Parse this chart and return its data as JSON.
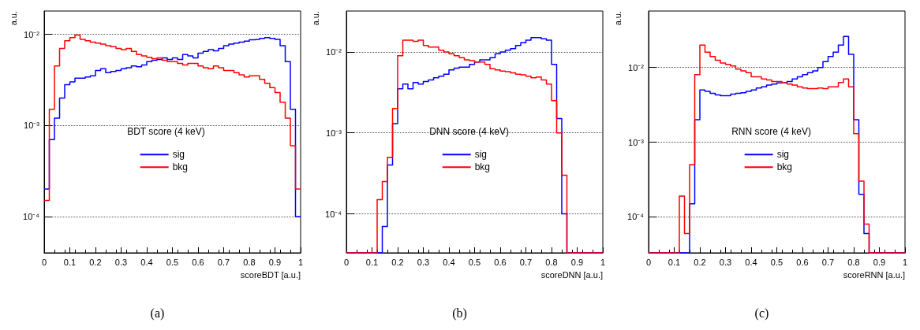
{
  "chart_data": [
    {
      "type": "histogram",
      "legend_title": "BDT score (4 keV)",
      "xlabel": "scoreBDT [a.u.]",
      "ylabel": "a.u.",
      "annotations": [
        "(a)"
      ],
      "log": "y",
      "grid": "y",
      "legend": "center",
      "line_style": "solid",
      "bins": [
        0,
        0.02,
        0.04,
        0.06,
        0.08,
        0.1,
        0.12,
        0.14,
        0.16,
        0.18,
        0.2,
        0.22,
        0.24,
        0.26,
        0.28,
        0.3,
        0.32,
        0.34,
        0.36,
        0.38,
        0.4,
        0.42,
        0.44,
        0.46,
        0.48,
        0.5,
        0.52,
        0.54,
        0.56,
        0.58,
        0.6,
        0.62,
        0.64,
        0.66,
        0.68,
        0.7,
        0.72,
        0.74,
        0.76,
        0.78,
        0.8,
        0.82,
        0.84,
        0.86,
        0.88,
        0.9,
        0.92,
        0.94,
        0.96,
        0.98,
        1
      ],
      "xlim": [
        0,
        1
      ],
      "xticks": [
        0,
        0.1,
        0.2,
        0.3,
        0.4,
        0.5,
        0.6,
        0.7,
        0.8,
        0.9,
        1
      ],
      "ylim": [
        4e-05,
        0.018
      ],
      "yticks": [
        {
          "value": 0.0001,
          "label": "10⁻⁴"
        },
        {
          "value": 0.001,
          "label": "10⁻³"
        },
        {
          "value": 0.01,
          "label": "10⁻²"
        }
      ],
      "series": [
        {
          "name": "sig",
          "color": "#0000ff",
          "values": [
            0.0002,
            0.0007,
            0.0012,
            0.002,
            0.0028,
            0.003,
            0.0033,
            0.0033,
            0.0034,
            0.0035,
            0.004,
            0.0042,
            0.0038,
            0.0039,
            0.004,
            0.0042,
            0.0043,
            0.0045,
            0.0044,
            0.0046,
            0.005,
            0.0052,
            0.0053,
            0.0055,
            0.0053,
            0.0055,
            0.0053,
            0.006,
            0.0058,
            0.0055,
            0.0062,
            0.0065,
            0.0068,
            0.0066,
            0.007,
            0.0075,
            0.0078,
            0.008,
            0.0082,
            0.0084,
            0.0087,
            0.0088,
            0.009,
            0.0092,
            0.009,
            0.0088,
            0.0075,
            0.005,
            0.0015,
            0.0001
          ]
        },
        {
          "name": "bkg",
          "color": "#ff0000",
          "values": [
            0.00015,
            0.0015,
            0.0045,
            0.007,
            0.0085,
            0.0092,
            0.0098,
            0.0088,
            0.0085,
            0.0082,
            0.008,
            0.0078,
            0.0075,
            0.0073,
            0.007,
            0.0068,
            0.007,
            0.0065,
            0.006,
            0.0058,
            0.0056,
            0.0054,
            0.0055,
            0.0052,
            0.005,
            0.005,
            0.0048,
            0.0046,
            0.0048,
            0.0048,
            0.0045,
            0.0043,
            0.0042,
            0.0045,
            0.0043,
            0.004,
            0.004,
            0.0038,
            0.0036,
            0.0034,
            0.0035,
            0.0035,
            0.0032,
            0.0029,
            0.0026,
            0.0023,
            0.0018,
            0.0012,
            0.0006,
            0.0002
          ]
        }
      ]
    },
    {
      "type": "histogram",
      "legend_title": "DNN score (4 keV)",
      "xlabel": "scoreDNN [a.u.]",
      "ylabel": "a.u.",
      "annotations": [
        "(b)"
      ],
      "log": "y",
      "grid": "y",
      "legend": "center",
      "line_style": "solid",
      "bins": [
        0,
        0.02,
        0.04,
        0.06,
        0.08,
        0.1,
        0.12,
        0.14,
        0.16,
        0.18,
        0.2,
        0.22,
        0.24,
        0.26,
        0.28,
        0.3,
        0.32,
        0.34,
        0.36,
        0.38,
        0.4,
        0.42,
        0.44,
        0.46,
        0.48,
        0.5,
        0.52,
        0.54,
        0.56,
        0.58,
        0.6,
        0.62,
        0.64,
        0.66,
        0.68,
        0.7,
        0.72,
        0.74,
        0.76,
        0.78,
        0.8,
        0.82,
        0.84,
        0.86,
        0.88,
        0.9,
        0.92,
        0.94,
        0.96,
        0.98,
        1
      ],
      "xlim": [
        0,
        1
      ],
      "xticks": [
        0,
        0.1,
        0.2,
        0.3,
        0.4,
        0.5,
        0.6,
        0.7,
        0.8,
        0.9,
        1
      ],
      "ylim": [
        3.3e-05,
        0.032
      ],
      "yticks": [
        {
          "value": 0.0001,
          "label": "10⁻⁴"
        },
        {
          "value": 0.001,
          "label": "10⁻³"
        },
        {
          "value": 0.01,
          "label": "10⁻²"
        }
      ],
      "series": [
        {
          "name": "sig",
          "color": "#0000ff",
          "values": [
            null,
            null,
            null,
            null,
            null,
            null,
            null,
            7e-05,
            0.0004,
            0.0013,
            0.0035,
            0.004,
            0.0035,
            0.0042,
            0.004,
            0.0043,
            0.0045,
            0.0048,
            0.005,
            0.0053,
            0.006,
            0.0063,
            0.0065,
            0.0065,
            0.007,
            0.0075,
            0.008,
            0.008,
            0.0085,
            0.0095,
            0.01,
            0.0105,
            0.011,
            0.012,
            0.013,
            0.014,
            0.015,
            0.015,
            0.0145,
            0.014,
            0.007,
            0.0015,
            0.0001,
            null,
            null,
            null,
            null,
            null,
            null,
            null
          ]
        },
        {
          "name": "bkg",
          "color": "#ff0000",
          "values": [
            null,
            null,
            null,
            null,
            null,
            null,
            0.00015,
            0.00025,
            0.0005,
            0.002,
            0.009,
            0.014,
            0.014,
            0.0135,
            0.014,
            0.012,
            0.0115,
            0.0115,
            0.0105,
            0.01,
            0.0095,
            0.009,
            0.0085,
            0.008,
            0.0078,
            0.0075,
            0.0075,
            0.007,
            0.0062,
            0.006,
            0.0058,
            0.0057,
            0.0055,
            0.0053,
            0.0052,
            0.005,
            0.0048,
            0.0049,
            0.0045,
            0.004,
            0.0025,
            0.001,
            0.0003,
            null,
            null,
            null,
            null,
            null,
            null,
            null
          ]
        }
      ]
    },
    {
      "type": "histogram",
      "legend_title": "RNN score (4 keV)",
      "xlabel": "scoreRNN [a.u.]",
      "ylabel": "a.u.",
      "annotations": [
        "(c)"
      ],
      "log": "y",
      "grid": "y",
      "legend": "center",
      "line_style": "solid",
      "bins": [
        0,
        0.02,
        0.04,
        0.06,
        0.08,
        0.1,
        0.12,
        0.14,
        0.16,
        0.18,
        0.2,
        0.22,
        0.24,
        0.26,
        0.28,
        0.3,
        0.32,
        0.34,
        0.36,
        0.38,
        0.4,
        0.42,
        0.44,
        0.46,
        0.48,
        0.5,
        0.52,
        0.54,
        0.56,
        0.58,
        0.6,
        0.62,
        0.64,
        0.66,
        0.68,
        0.7,
        0.72,
        0.74,
        0.76,
        0.78,
        0.8,
        0.82,
        0.84,
        0.86,
        0.88,
        0.9,
        0.92,
        0.94,
        0.96,
        0.98,
        1
      ],
      "xlim": [
        0,
        1
      ],
      "xticks": [
        0,
        0.1,
        0.2,
        0.3,
        0.4,
        0.5,
        0.6,
        0.7,
        0.8,
        0.9,
        1
      ],
      "ylim": [
        3.3e-05,
        0.057
      ],
      "yticks": [
        {
          "value": 0.0001,
          "label": "10⁻⁴"
        },
        {
          "value": 0.001,
          "label": "10⁻³"
        },
        {
          "value": 0.01,
          "label": "10⁻²"
        }
      ],
      "series": [
        {
          "name": "sig",
          "color": "#0000ff",
          "values": [
            null,
            null,
            null,
            null,
            null,
            null,
            null,
            null,
            0.00015,
            0.002,
            0.005,
            0.0048,
            0.0045,
            0.0043,
            0.0042,
            0.0042,
            0.0044,
            0.0045,
            0.0046,
            0.0048,
            0.005,
            0.0053,
            0.0055,
            0.0058,
            0.006,
            0.0062,
            0.0063,
            0.0065,
            0.007,
            0.0075,
            0.008,
            0.0085,
            0.009,
            0.01,
            0.012,
            0.014,
            0.016,
            0.02,
            0.026,
            0.015,
            0.002,
            0.0002,
            6e-05,
            null,
            null,
            null,
            null,
            null,
            null,
            null
          ]
        },
        {
          "name": "bkg",
          "color": "#ff0000",
          "values": [
            null,
            null,
            null,
            null,
            null,
            null,
            0.00019,
            6e-05,
            0.0005,
            0.008,
            0.02,
            0.016,
            0.014,
            0.0125,
            0.0115,
            0.011,
            0.0105,
            0.0095,
            0.009,
            0.0085,
            0.0075,
            0.0075,
            0.007,
            0.0068,
            0.0065,
            0.0065,
            0.0062,
            0.006,
            0.0058,
            0.0055,
            0.0053,
            0.0052,
            0.0052,
            0.0053,
            0.0052,
            0.0055,
            0.0055,
            0.0063,
            0.007,
            0.0055,
            0.0013,
            0.0003,
            8e-05,
            null,
            null,
            null,
            null,
            null,
            null,
            null
          ]
        }
      ]
    }
  ]
}
